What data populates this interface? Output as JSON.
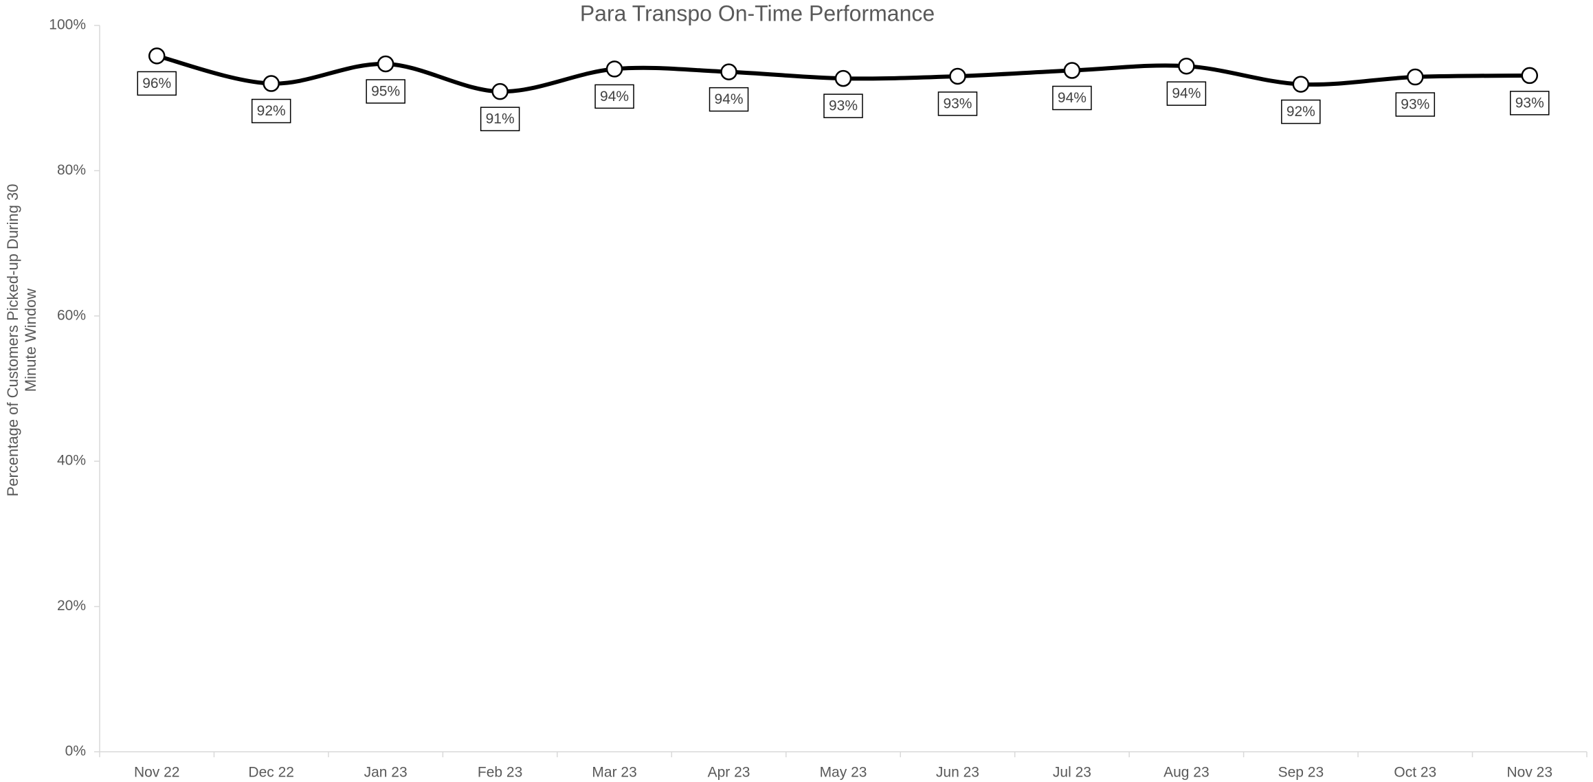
{
  "chart_data": {
    "type": "line",
    "title": "Para Transpo On-Time Performance",
    "y_label": "Percentage of Customers Picked-up During 30 Minute Window",
    "categories": [
      "Nov 22",
      "Dec 22",
      "Jan 23",
      "Feb 23",
      "Mar 23",
      "Apr 23",
      "May 23",
      "Jun 23",
      "Jul 23",
      "Aug 23",
      "Sep 23",
      "Oct 23",
      "Nov 23"
    ],
    "series": [
      {
        "name": "On-Time Performance",
        "color": "#000000",
        "values": [
          95.8,
          92.0,
          94.7,
          90.9,
          94.0,
          93.6,
          92.7,
          93.0,
          93.8,
          94.4,
          91.9,
          92.9,
          93.1
        ],
        "value_labels": [
          "96%",
          "92%",
          "95%",
          "91%",
          "94%",
          "94%",
          "93%",
          "93%",
          "94%",
          "94%",
          "92%",
          "93%",
          "93%"
        ]
      }
    ],
    "ylim": [
      0,
      100
    ],
    "yticks": [
      {
        "value": 0,
        "label": "0%"
      },
      {
        "value": 20,
        "label": "20%"
      },
      {
        "value": 40,
        "label": "40%"
      },
      {
        "value": 60,
        "label": "60%"
      },
      {
        "value": 80,
        "label": "80%"
      },
      {
        "value": 100,
        "label": "100%"
      }
    ],
    "grid": false,
    "smooth": true
  }
}
